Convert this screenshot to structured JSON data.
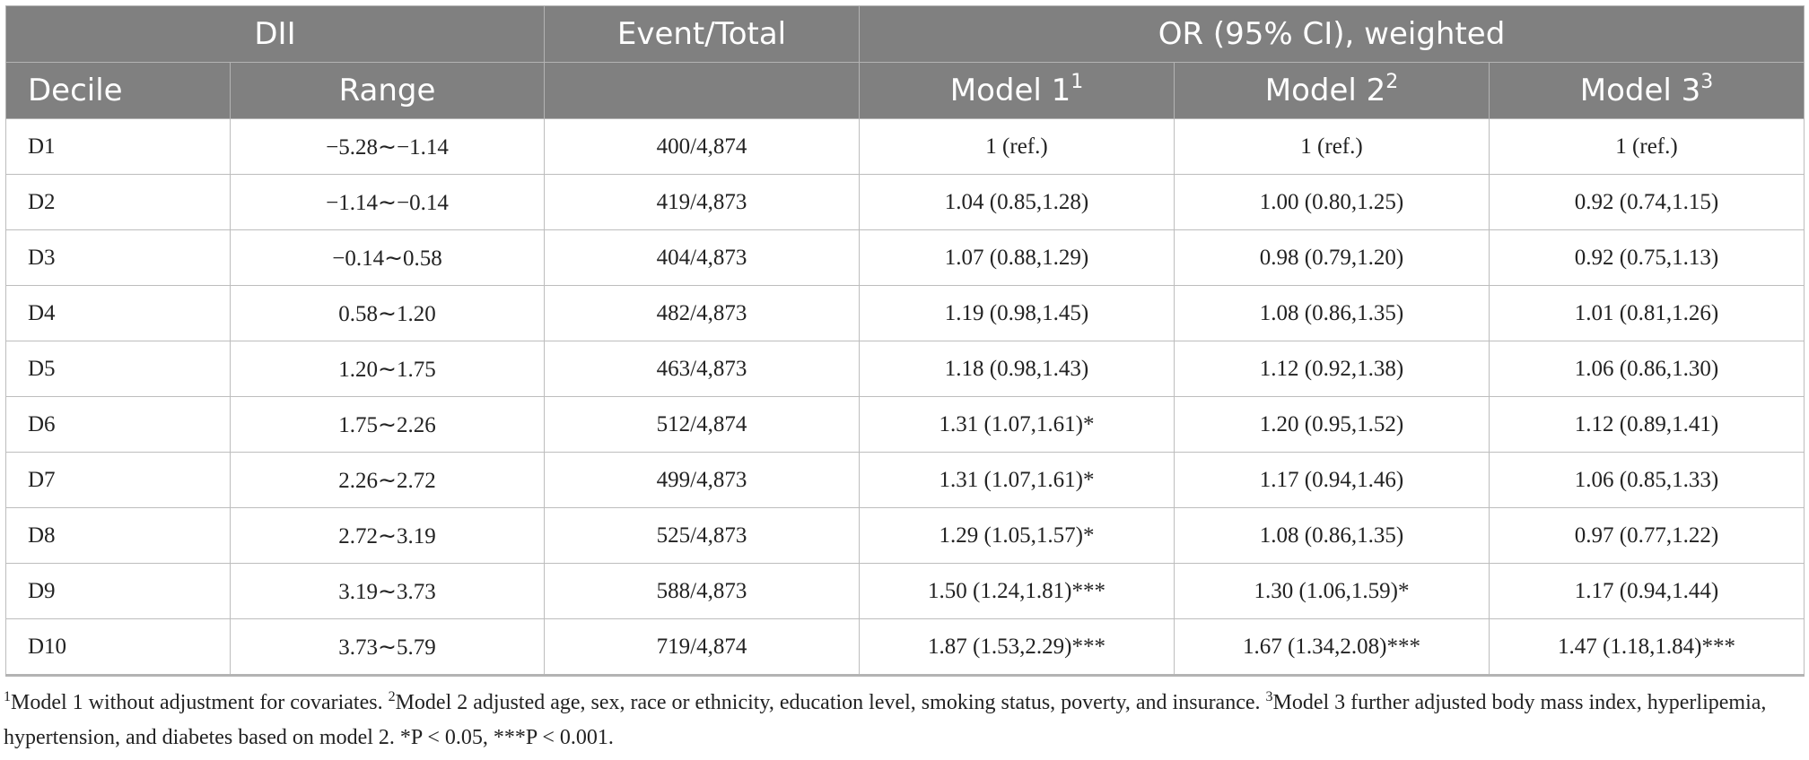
{
  "header": {
    "group_dii": "DII",
    "group_event_total": "Event/Total",
    "group_or": "OR (95% CI), weighted",
    "col_decile": "Decile",
    "col_range": "Range",
    "col_model1": "Model 1",
    "col_model1_sup": "1",
    "col_model2": "Model 2",
    "col_model2_sup": "2",
    "col_model3": "Model 3",
    "col_model3_sup": "3"
  },
  "rows": [
    {
      "decile": "D1",
      "range": "−5.28∼−1.14",
      "event_total": "400/4,874",
      "model1": "1 (ref.)",
      "model2": "1 (ref.)",
      "model3": "1 (ref.)"
    },
    {
      "decile": "D2",
      "range": "−1.14∼−0.14",
      "event_total": "419/4,873",
      "model1": "1.04 (0.85,1.28)",
      "model2": "1.00 (0.80,1.25)",
      "model3": "0.92 (0.74,1.15)"
    },
    {
      "decile": "D3",
      "range": "−0.14∼0.58",
      "event_total": "404/4,873",
      "model1": "1.07 (0.88,1.29)",
      "model2": "0.98 (0.79,1.20)",
      "model3": "0.92 (0.75,1.13)"
    },
    {
      "decile": "D4",
      "range": "0.58∼1.20",
      "event_total": "482/4,873",
      "model1": "1.19 (0.98,1.45)",
      "model2": "1.08 (0.86,1.35)",
      "model3": "1.01 (0.81,1.26)"
    },
    {
      "decile": "D5",
      "range": "1.20∼1.75",
      "event_total": "463/4,873",
      "model1": "1.18 (0.98,1.43)",
      "model2": "1.12 (0.92,1.38)",
      "model3": "1.06 (0.86,1.30)"
    },
    {
      "decile": "D6",
      "range": "1.75∼2.26",
      "event_total": "512/4,874",
      "model1": "1.31 (1.07,1.61)*",
      "model2": "1.20 (0.95,1.52)",
      "model3": "1.12 (0.89,1.41)"
    },
    {
      "decile": "D7",
      "range": "2.26∼2.72",
      "event_total": "499/4,873",
      "model1": "1.31 (1.07,1.61)*",
      "model2": "1.17 (0.94,1.46)",
      "model3": "1.06 (0.85,1.33)"
    },
    {
      "decile": "D8",
      "range": "2.72∼3.19",
      "event_total": "525/4,873",
      "model1": "1.29 (1.05,1.57)*",
      "model2": "1.08 (0.86,1.35)",
      "model3": "0.97 (0.77,1.22)"
    },
    {
      "decile": "D9",
      "range": "3.19∼3.73",
      "event_total": "588/4,873",
      "model1": "1.50 (1.24,1.81)***",
      "model2": "1.30 (1.06,1.59)*",
      "model3": "1.17 (0.94,1.44)"
    },
    {
      "decile": "D10",
      "range": "3.73∼5.79",
      "event_total": "719/4,874",
      "model1": "1.87 (1.53,2.29)***",
      "model2": "1.67 (1.34,2.08)***",
      "model3": "1.47 (1.18,1.84)***"
    }
  ],
  "footnote": {
    "sup1": "1",
    "note1": "Model 1 without adjustment for covariates. ",
    "sup2": "2",
    "note2": "Model 2 adjusted age, sex, race or ethnicity, education level, smoking status, poverty, and insurance. ",
    "sup3": "3",
    "note3": "Model 3 further adjusted body mass index, hyperlipemia, hypertension, and diabetes based on model 2. ",
    "sig": "*P < 0.05, ***P < 0.001."
  }
}
